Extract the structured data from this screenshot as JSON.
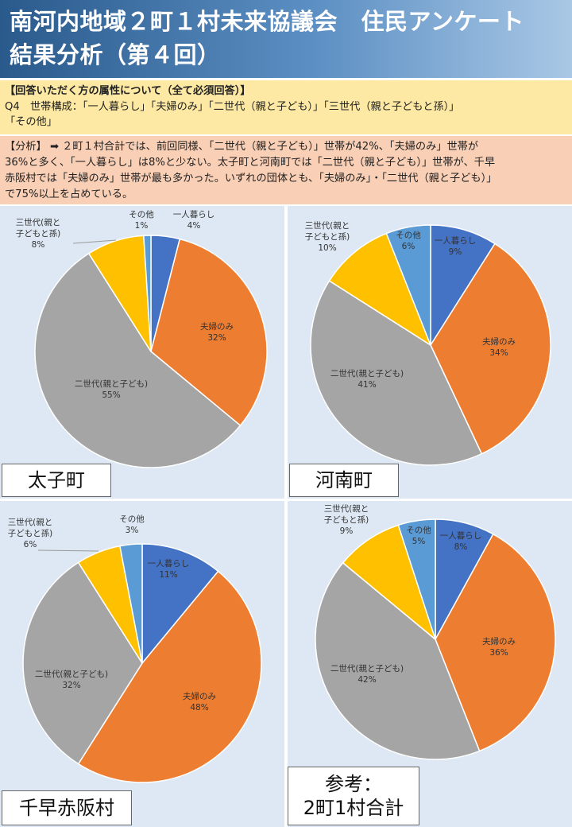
{
  "title": "南河内地域２町１村未来協議会　住民アンケート　結果分析（第４回）",
  "question": {
    "line1": "【回答いただく方の属性について（全て必須回答）】",
    "line2": "Q4　世帯構成：「一人暮らし」「夫婦のみ」「二世代（親と子ども）」「三世代（親と子どもと孫）」",
    "line3": "「その他」"
  },
  "analysis": {
    "line1": "【分析】 ➡ ２町１村合計では、前回同様、「二世代（親と子ども）」世帯が42%、「夫婦のみ」世帯が",
    "line2": "36%と多く、「一人暮らし」は8%と少ない。太子町と河南町では「二世代（親と子ども）」世帯が、千早",
    "line3": "赤阪村では「夫婦のみ」世帯が最も多かった。いずれの団体とも、「夫婦のみ」・「二世代（親と子ども）」",
    "line4": "で75%以上を占めている。"
  },
  "colors": {
    "一人暮らし": "#4472c4",
    "夫婦のみ": "#ed7d31",
    "二世代（親と子ども）": "#a5a5a5",
    "三世代（親と子どもと孫）": "#ffc000",
    "その他": "#5b9bd5"
  },
  "chart_data": [
    {
      "type": "pie",
      "title": "太子町",
      "categories": [
        "一人暮らし",
        "夫婦のみ",
        "二世代（親と子ども）",
        "三世代（親と子どもと孫）",
        "その他"
      ],
      "labels": [
        "一人暮らし",
        "夫婦のみ",
        "二世代(親と子ども)",
        "三世代(親と子どもと孫)",
        "その他"
      ],
      "values": [
        4,
        32,
        55,
        8,
        1
      ],
      "value_labels": [
        "4%",
        "32%",
        "55%",
        "8%",
        "1%"
      ]
    },
    {
      "type": "pie",
      "title": "河南町",
      "categories": [
        "一人暮らし",
        "夫婦のみ",
        "二世代（親と子ども）",
        "三世代（親と子どもと孫）",
        "その他"
      ],
      "labels": [
        "一人暮らし",
        "夫婦のみ",
        "二世代(親と子ども)",
        "三世代(親と子どもと孫)",
        "その他"
      ],
      "values": [
        9,
        34,
        41,
        10,
        6
      ],
      "value_labels": [
        "9%",
        "34%",
        "41%",
        "10%",
        "6%"
      ]
    },
    {
      "type": "pie",
      "title": "千早赤阪村",
      "categories": [
        "一人暮らし",
        "夫婦のみ",
        "二世代（親と子ども）",
        "三世代（親と子どもと孫）",
        "その他"
      ],
      "labels": [
        "一人暮らし",
        "夫婦のみ",
        "二世代(親と子ども)",
        "三世代(親と子どもと孫)",
        "その他"
      ],
      "values": [
        11,
        48,
        32,
        6,
        3
      ],
      "value_labels": [
        "11%",
        "48%",
        "32%",
        "6%",
        "3%"
      ]
    },
    {
      "type": "pie",
      "title_line1": "参考：",
      "title_line2": "2町1村合計",
      "categories": [
        "一人暮らし",
        "夫婦のみ",
        "二世代（親と子ども）",
        "三世代（親と子どもと孫）",
        "その他"
      ],
      "labels": [
        "一人暮らし",
        "夫婦のみ",
        "二世代(親と子ども)",
        "三世代(親と子どもと孫)",
        "その他"
      ],
      "values": [
        8,
        36,
        42,
        9,
        5
      ],
      "value_labels": [
        "8%",
        "36%",
        "42%",
        "9%",
        "5%"
      ]
    }
  ]
}
